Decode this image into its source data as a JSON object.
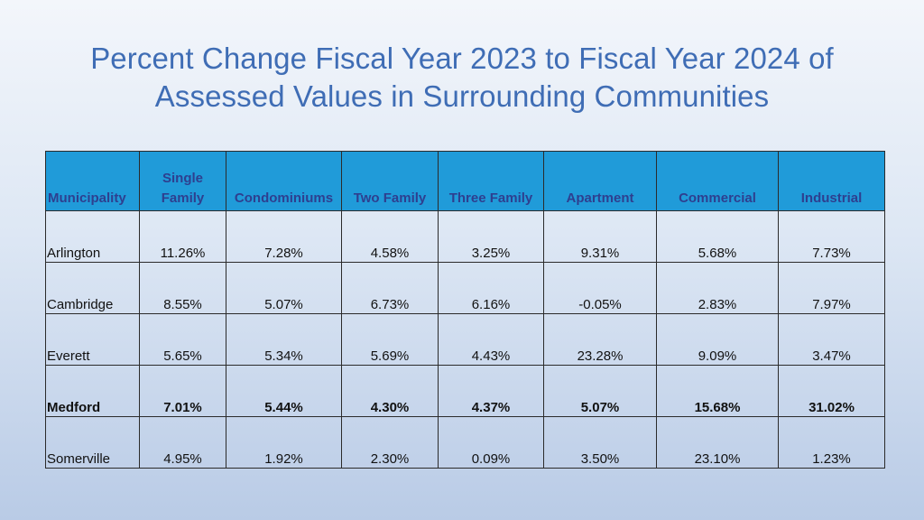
{
  "title": {
    "line1": "Percent Change Fiscal Year 2023 to Fiscal Year 2024 of",
    "line2": "Assessed Values in Surrounding Communities"
  },
  "table": {
    "headers": [
      "Municipality",
      "Single Family",
      "Condominiums",
      "Two Family",
      "Three Family",
      "Apartment",
      "Commercial",
      "Industrial"
    ],
    "rows": [
      [
        "Arlington",
        "11.26%",
        "7.28%",
        "4.58%",
        "3.25%",
        "9.31%",
        "5.68%",
        "7.73%"
      ],
      [
        "Cambridge",
        "8.55%",
        "5.07%",
        "6.73%",
        "6.16%",
        "-0.05%",
        "2.83%",
        "7.97%"
      ],
      [
        "Everett",
        "5.65%",
        "5.34%",
        "5.69%",
        "4.43%",
        "23.28%",
        "9.09%",
        "3.47%"
      ],
      [
        "Medford",
        "7.01%",
        "5.44%",
        "4.30%",
        "4.37%",
        "5.07%",
        "15.68%",
        "31.02%"
      ],
      [
        "Somerville",
        "4.95%",
        "1.92%",
        "2.30%",
        "0.09%",
        "3.50%",
        "23.10%",
        "1.23%"
      ]
    ]
  },
  "colors": {
    "title": "#3f6db5",
    "header_bg": "#209bd9",
    "header_text": "#2e3f8f"
  }
}
